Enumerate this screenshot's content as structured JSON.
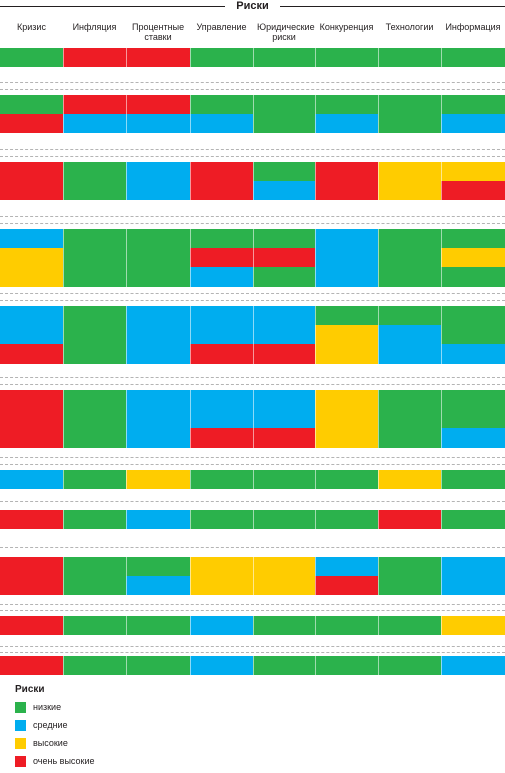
{
  "title": "Риски",
  "columns": [
    "Кризис",
    "Инфляция",
    "Процентные ставки",
    "Управление",
    "Юридические риски",
    "Конкуренция",
    "Технологии",
    "Информация"
  ],
  "colors": {
    "low": "#2bb24c",
    "medium": "#00adef",
    "high": "#ffcc00",
    "very_high": "#ee1c25"
  },
  "legend": {
    "title": "Риски",
    "items": [
      {
        "key": "low",
        "label": "низкие"
      },
      {
        "key": "medium",
        "label": "средние"
      },
      {
        "key": "high",
        "label": "высокие"
      },
      {
        "key": "very_high",
        "label": "очень высокие"
      }
    ]
  },
  "groups": [
    [
      [
        "low",
        "very_high",
        "very_high",
        "low",
        "low",
        "low",
        "low",
        "low"
      ]
    ],
    [
      [
        "low",
        "very_high",
        "very_high",
        "low",
        "low",
        "low",
        "low",
        "low"
      ],
      [
        "very_high",
        "medium",
        "medium",
        "medium",
        "low",
        "medium",
        "low",
        "medium"
      ]
    ],
    [
      [
        "very_high",
        "low",
        "medium",
        "very_high",
        "low",
        "very_high",
        "high",
        "high"
      ],
      [
        "very_high",
        "low",
        "medium",
        "very_high",
        "medium",
        "very_high",
        "high",
        "very_high"
      ]
    ],
    [
      [
        "medium",
        "low",
        "low",
        "low",
        "low",
        "medium",
        "low",
        "low"
      ],
      [
        "high",
        "low",
        "low",
        "very_high",
        "very_high",
        "medium",
        "low",
        "high"
      ],
      [
        "high",
        "low",
        "low",
        "medium",
        "low",
        "medium",
        "low",
        "low"
      ]
    ],
    [
      [
        "medium",
        "low",
        "medium",
        "medium",
        "medium",
        "low",
        "low",
        "low"
      ],
      [
        "medium",
        "low",
        "medium",
        "medium",
        "medium",
        "high",
        "medium",
        "low"
      ],
      [
        "very_high",
        "low",
        "medium",
        "very_high",
        "very_high",
        "high",
        "medium",
        "medium"
      ]
    ],
    [
      [
        "very_high",
        "low",
        "medium",
        "medium",
        "medium",
        "high",
        "low",
        "low"
      ],
      [
        "very_high",
        "low",
        "medium",
        "medium",
        "medium",
        "high",
        "low",
        "low"
      ],
      [
        "very_high",
        "low",
        "medium",
        "very_high",
        "very_high",
        "high",
        "low",
        "medium"
      ]
    ],
    [
      [
        "medium",
        "low",
        "high",
        "low",
        "low",
        "low",
        "high",
        "low"
      ]
    ],
    [
      [
        "very_high",
        "low",
        "medium",
        "low",
        "low",
        "low",
        "very_high",
        "low"
      ]
    ],
    [
      [
        "very_high",
        "low",
        "low",
        "high",
        "high",
        "medium",
        "low",
        "medium"
      ],
      [
        "very_high",
        "low",
        "medium",
        "high",
        "high",
        "very_high",
        "low",
        "medium"
      ]
    ],
    [
      [
        "very_high",
        "low",
        "low",
        "medium",
        "low",
        "low",
        "low",
        "high"
      ]
    ],
    [
      [
        "very_high",
        "low",
        "low",
        "medium",
        "low",
        "low",
        "low",
        "medium"
      ]
    ]
  ]
}
